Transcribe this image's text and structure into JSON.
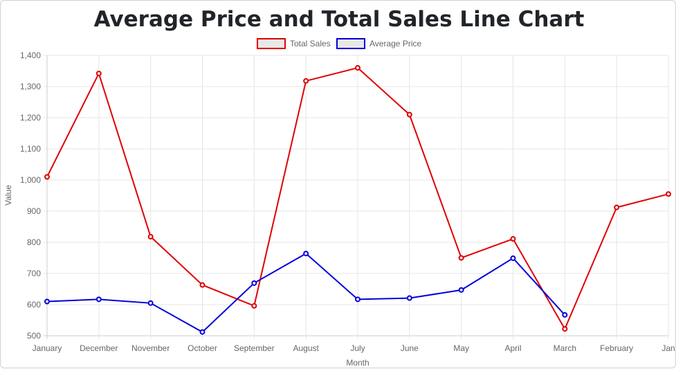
{
  "chart_data": {
    "type": "line",
    "title": "Average Price and Total Sales Line Chart",
    "xlabel": "Month",
    "ylabel": "Value",
    "ylim": [
      500,
      1400
    ],
    "y_ticks": [
      "500",
      "600",
      "700",
      "800",
      "900",
      "1,000",
      "1,100",
      "1,200",
      "1,300",
      "1,400"
    ],
    "y_tick_values": [
      500,
      600,
      700,
      800,
      900,
      1000,
      1100,
      1200,
      1300,
      1400
    ],
    "categories": [
      "January",
      "December",
      "November",
      "October",
      "September",
      "August",
      "July",
      "June",
      "May",
      "April",
      "March",
      "February",
      "Jan"
    ],
    "grid": true,
    "legend_position": "top-center",
    "series": [
      {
        "name": "Total Sales",
        "color": "#e00000",
        "fill": "#e8e8e8",
        "values": [
          1010,
          1342,
          818,
          663,
          596,
          1318,
          1360,
          1210,
          750,
          811,
          522,
          912,
          955
        ]
      },
      {
        "name": "Average Price",
        "color": "#0000dd",
        "fill": "#e8e8e8",
        "values": [
          610,
          617,
          605,
          512,
          669,
          764,
          617,
          621,
          647,
          749,
          567,
          null,
          null
        ]
      }
    ]
  }
}
